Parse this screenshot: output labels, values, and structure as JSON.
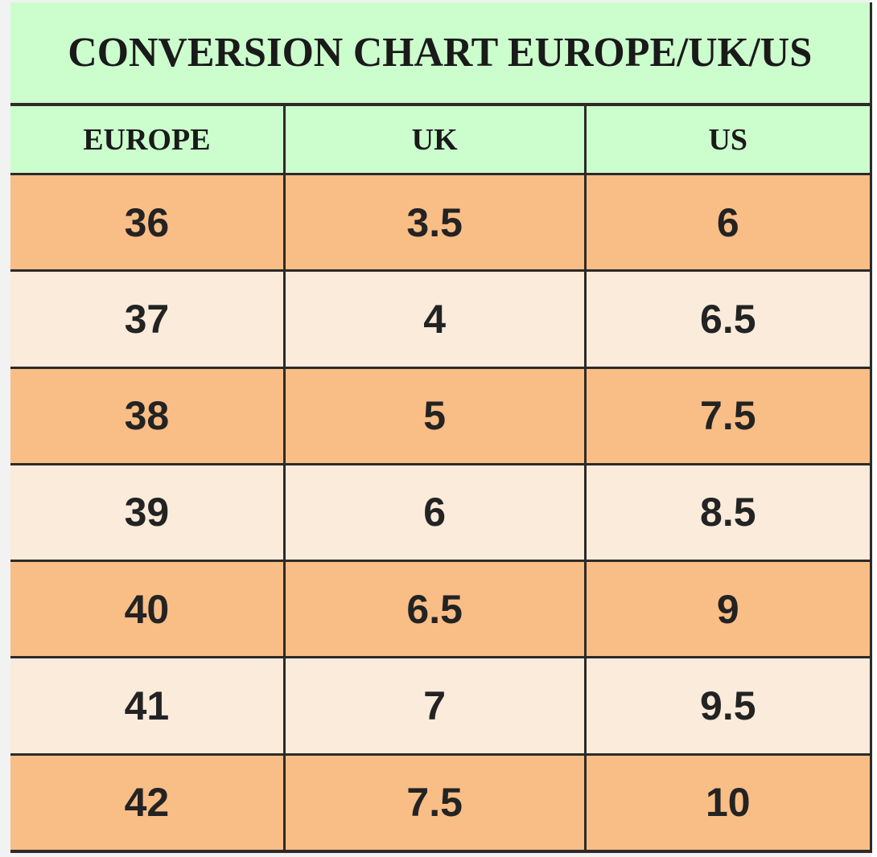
{
  "chart_data": {
    "type": "table",
    "title": "CONVERSION CHART EUROPE/UK/US",
    "columns": [
      "EUROPE",
      "UK",
      "US"
    ],
    "rows": [
      [
        "36",
        "3.5",
        "6"
      ],
      [
        "37",
        "4",
        "6.5"
      ],
      [
        "38",
        "5",
        "7.5"
      ],
      [
        "39",
        "6",
        "8.5"
      ],
      [
        "40",
        "6.5",
        "9"
      ],
      [
        "41",
        "7",
        "9.5"
      ],
      [
        "42",
        "7.5",
        "10"
      ]
    ],
    "layout": "three equal-width columns; title band and header row on mint green; data rows alternate orange then light peach starting with orange"
  },
  "style_colors": {
    "header_bg": "#ccfdcd",
    "row_odd_bg": "#f9bd86",
    "row_even_bg": "#faebdb",
    "border": "#2d2a27",
    "text": "#1a1a1a",
    "page_bg": "#f2f2f2"
  }
}
